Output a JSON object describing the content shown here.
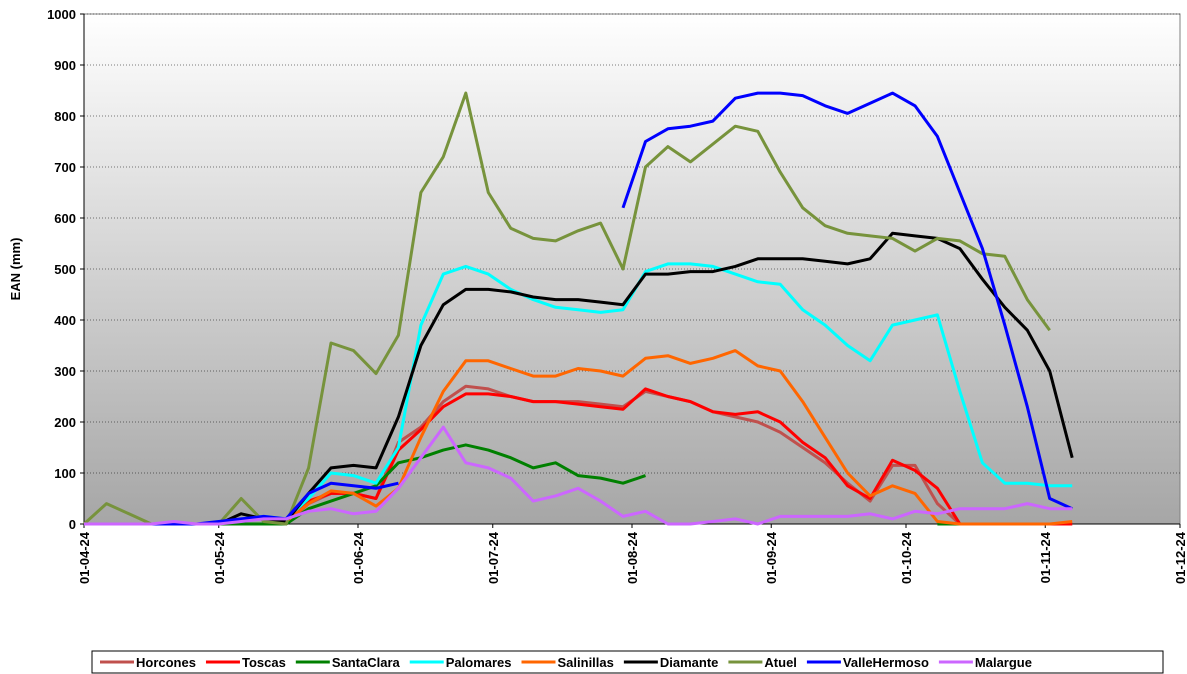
{
  "chart_data": {
    "type": "line",
    "ylabel": "EAN (mm)",
    "x": [
      "2024-04-01",
      "2024-04-06",
      "2024-04-11",
      "2024-04-16",
      "2024-04-21",
      "2024-04-26",
      "2024-05-01",
      "2024-05-06",
      "2024-05-11",
      "2024-05-16",
      "2024-05-21",
      "2024-05-26",
      "2024-05-31",
      "2024-06-05",
      "2024-06-10",
      "2024-06-15",
      "2024-06-20",
      "2024-06-25",
      "2024-06-30",
      "2024-07-05",
      "2024-07-10",
      "2024-07-15",
      "2024-07-20",
      "2024-07-25",
      "2024-07-30",
      "2024-08-04",
      "2024-08-09",
      "2024-08-14",
      "2024-08-19",
      "2024-08-24",
      "2024-08-29",
      "2024-09-03",
      "2024-09-08",
      "2024-09-13",
      "2024-09-18",
      "2024-09-23",
      "2024-09-28",
      "2024-10-03",
      "2024-10-08",
      "2024-10-13",
      "2024-10-18",
      "2024-10-23",
      "2024-10-28",
      "2024-11-02",
      "2024-11-07"
    ],
    "xlim": [
      "2024-04-01",
      "2024-12-01"
    ],
    "xticks": [
      {
        "value": "2024-04-01",
        "label": "01-04-24"
      },
      {
        "value": "2024-05-01",
        "label": "01-05-24"
      },
      {
        "value": "2024-06-01",
        "label": "01-06-24"
      },
      {
        "value": "2024-07-01",
        "label": "01-07-24"
      },
      {
        "value": "2024-08-01",
        "label": "01-08-24"
      },
      {
        "value": "2024-09-01",
        "label": "01-09-24"
      },
      {
        "value": "2024-10-01",
        "label": "01-10-24"
      },
      {
        "value": "2024-11-01",
        "label": "01-11-24"
      },
      {
        "value": "2024-12-01",
        "label": "01-12-24"
      }
    ],
    "ylim": [
      0,
      1000
    ],
    "yticks": [
      0,
      100,
      200,
      300,
      400,
      500,
      600,
      700,
      800,
      900,
      1000
    ],
    "grid": true,
    "legend": "bottom",
    "series": [
      {
        "name": "Horcones",
        "color": "#C0504D",
        "values": [
          0,
          0,
          0,
          0,
          0,
          0,
          0,
          0,
          0,
          0,
          40,
          60,
          60,
          50,
          160,
          190,
          240,
          270,
          265,
          250,
          240,
          240,
          240,
          235,
          230,
          260,
          250,
          240,
          220,
          210,
          200,
          180,
          150,
          120,
          80,
          45,
          115,
          115,
          40,
          0,
          0,
          0,
          0,
          0,
          0
        ]
      },
      {
        "name": "Toscas",
        "color": "#FF0000",
        "values": [
          0,
          0,
          0,
          0,
          0,
          0,
          0,
          0,
          0,
          0,
          45,
          60,
          60,
          50,
          145,
          185,
          230,
          255,
          255,
          250,
          240,
          240,
          235,
          230,
          225,
          265,
          250,
          240,
          220,
          215,
          220,
          200,
          160,
          130,
          75,
          50,
          125,
          105,
          70,
          0,
          0,
          0,
          0,
          0,
          0
        ]
      },
      {
        "name": "SantaClara",
        "color": "#008000",
        "values": [
          0,
          0,
          0,
          0,
          0,
          0,
          0,
          0,
          0,
          0,
          30,
          45,
          60,
          75,
          120,
          130,
          145,
          155,
          145,
          130,
          110,
          120,
          95,
          90,
          80,
          95,
          null,
          null,
          null,
          null,
          null,
          null,
          null,
          null,
          null,
          null,
          null,
          null,
          0,
          0,
          null,
          null,
          null,
          null,
          null
        ]
      },
      {
        "name": "Palomares",
        "color": "#00FFFF",
        "values": [
          0,
          0,
          0,
          0,
          0,
          0,
          0,
          10,
          15,
          10,
          50,
          100,
          95,
          80,
          150,
          390,
          490,
          505,
          490,
          460,
          440,
          425,
          420,
          415,
          420,
          495,
          510,
          510,
          505,
          490,
          475,
          470,
          420,
          390,
          350,
          320,
          390,
          400,
          410,
          260,
          120,
          80,
          80,
          75,
          75
        ]
      },
      {
        "name": "Salinillas",
        "color": "#FF6600",
        "values": [
          0,
          0,
          0,
          0,
          0,
          0,
          0,
          10,
          10,
          5,
          40,
          65,
          60,
          35,
          70,
          170,
          260,
          320,
          320,
          305,
          290,
          290,
          305,
          300,
          290,
          325,
          330,
          315,
          325,
          340,
          310,
          300,
          240,
          170,
          100,
          55,
          75,
          60,
          5,
          0,
          0,
          0,
          0,
          0,
          5
        ]
      },
      {
        "name": "Diamante",
        "color": "#000000",
        "values": [
          0,
          0,
          0,
          0,
          0,
          0,
          0,
          20,
          10,
          5,
          60,
          110,
          115,
          110,
          210,
          350,
          430,
          460,
          460,
          455,
          445,
          440,
          440,
          435,
          430,
          490,
          490,
          495,
          495,
          505,
          520,
          520,
          520,
          515,
          510,
          520,
          570,
          565,
          560,
          540,
          480,
          425,
          380,
          300,
          130
        ]
      },
      {
        "name": "Atuel",
        "color": "#77933C",
        "values": [
          0,
          40,
          20,
          0,
          0,
          0,
          0,
          50,
          5,
          0,
          110,
          355,
          340,
          295,
          370,
          650,
          720,
          845,
          650,
          580,
          560,
          555,
          575,
          590,
          500,
          700,
          740,
          710,
          745,
          780,
          770,
          690,
          620,
          585,
          570,
          565,
          560,
          535,
          560,
          555,
          530,
          525,
          440,
          380,
          null
        ]
      },
      {
        "name": "ValleHermoso",
        "color": "#0000FF",
        "values": [
          0,
          0,
          0,
          0,
          0,
          0,
          5,
          10,
          15,
          10,
          60,
          80,
          75,
          70,
          80,
          null,
          null,
          null,
          null,
          null,
          null,
          null,
          null,
          null,
          620,
          750,
          775,
          780,
          790,
          835,
          845,
          845,
          840,
          820,
          805,
          825,
          845,
          820,
          760,
          650,
          540,
          390,
          230,
          50,
          30
        ]
      },
      {
        "name": "Malargue",
        "color": "#CC66FF",
        "values": [
          0,
          0,
          0,
          0,
          5,
          0,
          0,
          5,
          10,
          10,
          25,
          30,
          20,
          25,
          70,
          130,
          190,
          120,
          110,
          90,
          45,
          55,
          70,
          45,
          15,
          25,
          0,
          0,
          5,
          10,
          0,
          15,
          15,
          15,
          15,
          20,
          10,
          25,
          20,
          30,
          30,
          30,
          40,
          30,
          30
        ]
      }
    ]
  }
}
